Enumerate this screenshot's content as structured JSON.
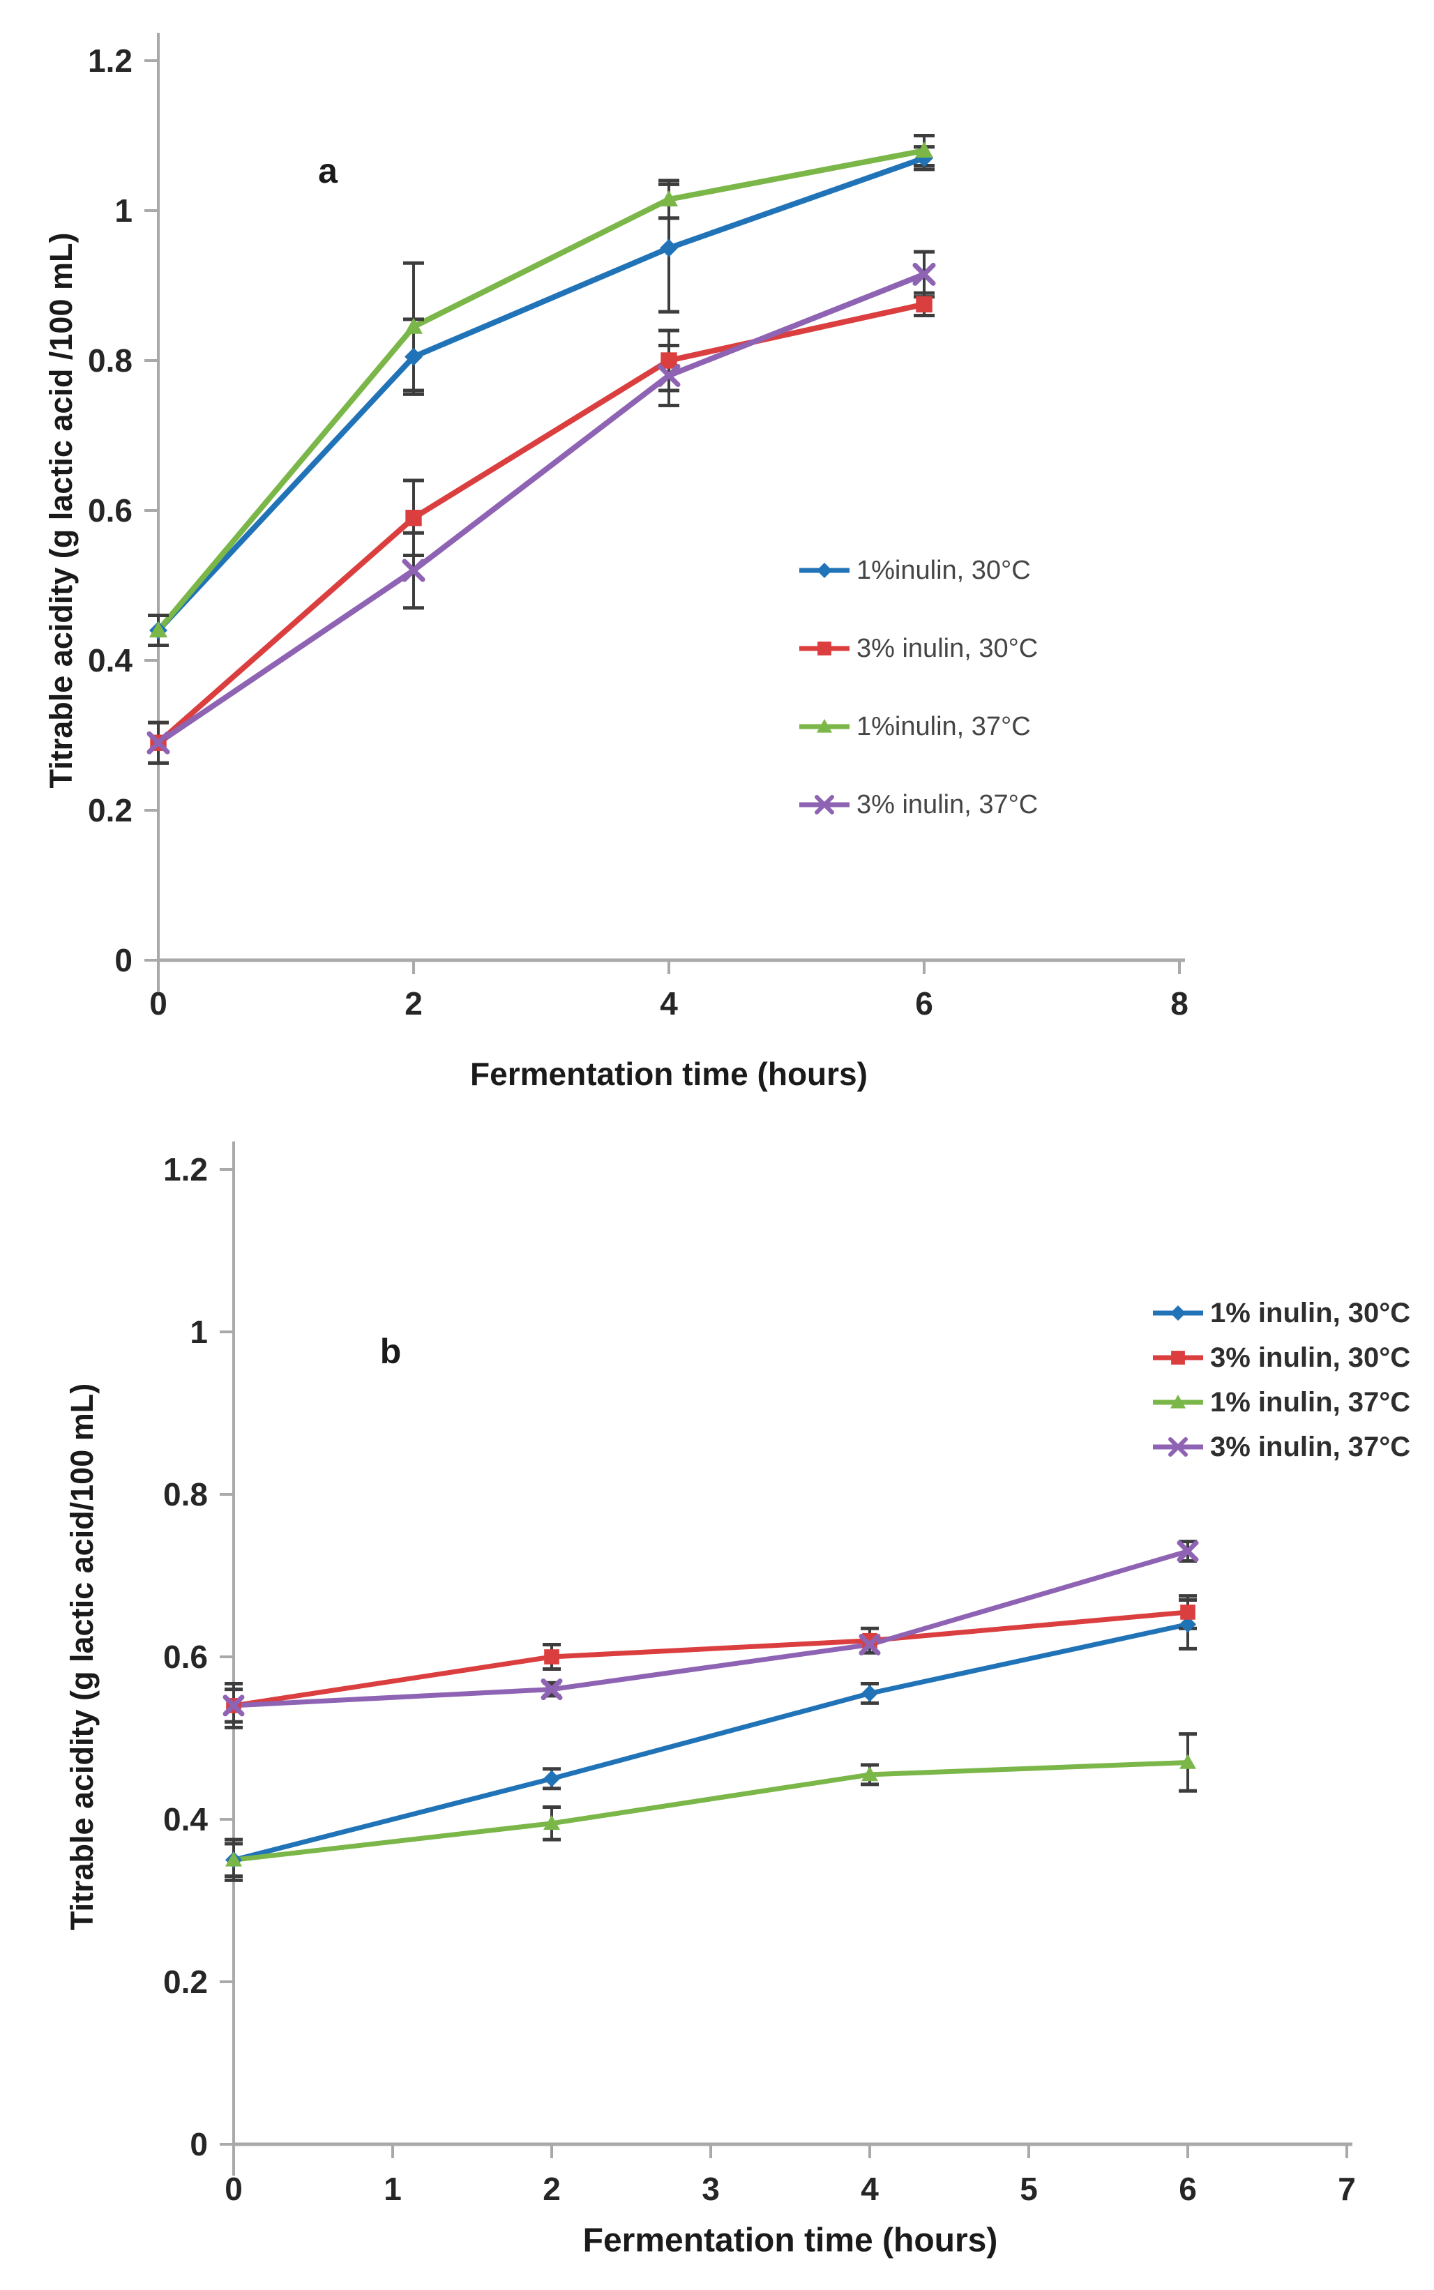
{
  "figure": {
    "description": "Two-panel line figure of titratable acidity during fermentation",
    "panel_labels": [
      "a",
      "b"
    ]
  },
  "chart_data": [
    {
      "type": "line",
      "panel_label": "a",
      "xlabel": "Fermentation time (hours)",
      "ylabel": "Titrable acidity (g lactic acid /100 mL)",
      "x": [
        0,
        2,
        4,
        6
      ],
      "x_ticks": [
        0,
        2,
        4,
        6,
        8
      ],
      "y_ticks": [
        "0",
        "0.2",
        "0.4",
        "0.6",
        "0.8",
        "1",
        "1.2"
      ],
      "xlim": [
        0,
        8
      ],
      "ylim": [
        0,
        1.2
      ],
      "grid": false,
      "legend_position": "middle-right",
      "error_bar_color": "#3d3d3d",
      "axis_color": "#a9a9a9",
      "series": [
        {
          "name": "1%inulin, 30°C",
          "color": "#2173b8",
          "marker": "diamond",
          "values": [
            0.44,
            0.805,
            0.95,
            1.07
          ],
          "errors": [
            0.02,
            0.05,
            0.085,
            0.015
          ]
        },
        {
          "name": "3% inulin, 30°C",
          "color": "#db3e3e",
          "marker": "square",
          "values": [
            0.29,
            0.59,
            0.8,
            0.875
          ],
          "errors": [
            0.027,
            0.05,
            0.04,
            0.015
          ]
        },
        {
          "name": "1%inulin, 37°C",
          "color": "#7ab648",
          "marker": "triangle",
          "values": [
            0.44,
            0.845,
            1.015,
            1.08
          ],
          "errors": [
            0.02,
            0.085,
            0.025,
            0.02
          ]
        },
        {
          "name": "3% inulin, 37°C",
          "color": "#8f63b3",
          "marker": "x",
          "values": [
            0.29,
            0.52,
            0.78,
            0.915
          ],
          "errors": [
            0.027,
            0.05,
            0.04,
            0.03
          ]
        }
      ]
    },
    {
      "type": "line",
      "panel_label": "b",
      "xlabel": "Fermentation time (hours)",
      "ylabel": "Titrable acidity (g lactic acid/100 mL)",
      "x": [
        0,
        2,
        4,
        6
      ],
      "x_ticks": [
        0,
        1,
        2,
        3,
        4,
        5,
        6,
        7
      ],
      "y_ticks": [
        "0",
        "0.2",
        "0.4",
        "0.6",
        "0.8",
        "1",
        "1.2"
      ],
      "xlim": [
        0,
        7
      ],
      "ylim": [
        0,
        1.2
      ],
      "grid": false,
      "legend_position": "top-right",
      "error_bar_color": "#3d3d3d",
      "axis_color": "#a9a9a9",
      "series": [
        {
          "name": "1% inulin, 30°C",
          "color": "#2173b8",
          "marker": "diamond",
          "values": [
            0.35,
            0.45,
            0.555,
            0.64
          ],
          "errors": [
            0.02,
            0.012,
            0.012,
            0.03
          ]
        },
        {
          "name": "3% inulin, 30°C",
          "color": "#db3e3e",
          "marker": "square",
          "values": [
            0.54,
            0.6,
            0.62,
            0.655
          ],
          "errors": [
            0.027,
            0.015,
            0.015,
            0.02
          ]
        },
        {
          "name": "1% inulin, 37°C",
          "color": "#7ab648",
          "marker": "triangle",
          "values": [
            0.35,
            0.395,
            0.455,
            0.47
          ],
          "errors": [
            0.025,
            0.02,
            0.012,
            0.035
          ]
        },
        {
          "name": "3% inulin, 37°C",
          "color": "#8f63b3",
          "marker": "x",
          "values": [
            0.54,
            0.56,
            0.615,
            0.73
          ],
          "errors": [
            0.02,
            0.008,
            0.01,
            0.012
          ]
        }
      ]
    }
  ]
}
